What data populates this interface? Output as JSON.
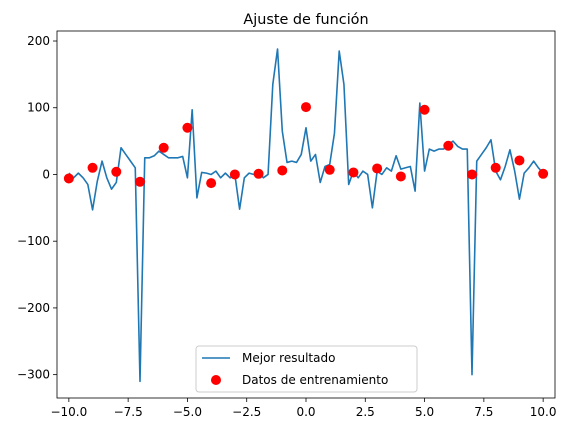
{
  "chart_data": {
    "type": "line+scatter",
    "title": "Ajuste de función",
    "xlabel": "",
    "ylabel": "",
    "xlim": [
      -10.5,
      10.5
    ],
    "ylim": [
      -335,
      215
    ],
    "xticks": [
      -10.0,
      -7.5,
      -5.0,
      -2.5,
      0.0,
      2.5,
      5.0,
      7.5,
      10.0
    ],
    "xtick_labels": [
      "−10.0",
      "−7.5",
      "−5.0",
      "−2.5",
      "0.0",
      "2.5",
      "5.0",
      "7.5",
      "10.0"
    ],
    "yticks": [
      200,
      100,
      0,
      -100,
      -200,
      -300
    ],
    "ytick_labels": [
      "200",
      "100",
      "0",
      "−100",
      "−200",
      "−300"
    ],
    "grid": false,
    "legend_position": "lower center",
    "series": [
      {
        "name": "Mejor resultado",
        "kind": "line",
        "color": "#1f77b4",
        "x": [
          -10.0,
          -9.8,
          -9.6,
          -9.4,
          -9.2,
          -9.0,
          -8.8,
          -8.6,
          -8.4,
          -8.2,
          -8.0,
          -7.8,
          -7.6,
          -7.4,
          -7.2,
          -7.0,
          -6.8,
          -6.6,
          -6.4,
          -6.2,
          -6.0,
          -5.8,
          -5.6,
          -5.4,
          -5.2,
          -5.0,
          -4.8,
          -4.6,
          -4.4,
          -4.2,
          -4.0,
          -3.8,
          -3.6,
          -3.4,
          -3.2,
          -3.0,
          -2.8,
          -2.6,
          -2.4,
          -2.2,
          -2.0,
          -1.8,
          -1.6,
          -1.4,
          -1.2,
          -1.0,
          -0.8,
          -0.6,
          -0.4,
          -0.2,
          0.0,
          0.2,
          0.4,
          0.6,
          0.8,
          1.0,
          1.2,
          1.4,
          1.6,
          1.8,
          2.0,
          2.2,
          2.4,
          2.6,
          2.8,
          3.0,
          3.2,
          3.4,
          3.6,
          3.8,
          4.0,
          4.2,
          4.4,
          4.6,
          4.8,
          5.0,
          5.2,
          5.4,
          5.6,
          5.8,
          6.0,
          6.2,
          6.4,
          6.6,
          6.8,
          7.0,
          7.2,
          7.4,
          7.6,
          7.8,
          8.0,
          8.2,
          8.4,
          8.6,
          8.8,
          9.0,
          9.2,
          9.4,
          9.6,
          9.8,
          10.0
        ],
        "y": [
          2,
          -5,
          2,
          -5,
          -15,
          -53,
          -10,
          20,
          -5,
          -22,
          -12,
          40,
          30,
          20,
          10,
          -310,
          25,
          25,
          28,
          35,
          30,
          25,
          25,
          25,
          27,
          -5,
          97,
          -35,
          3,
          2,
          0,
          5,
          -5,
          2,
          -5,
          0,
          -52,
          -5,
          2,
          0,
          5,
          -5,
          0,
          135,
          188,
          65,
          18,
          20,
          18,
          30,
          70,
          20,
          30,
          -12,
          12,
          15,
          62,
          185,
          135,
          -15,
          5,
          -5,
          5,
          0,
          -50,
          5,
          0,
          10,
          5,
          28,
          8,
          10,
          12,
          -25,
          107,
          5,
          38,
          35,
          38,
          38,
          45,
          50,
          42,
          38,
          38,
          -300,
          20,
          30,
          40,
          52,
          5,
          -8,
          12,
          37,
          5,
          -37,
          2,
          10,
          20,
          10,
          2
        ]
      },
      {
        "name": "Datos de entrenamiento",
        "kind": "scatter",
        "color": "#ff0000",
        "x": [
          -10,
          -9,
          -8,
          -7,
          -6,
          -5,
          -4,
          -3,
          -2,
          -1,
          0,
          1,
          2,
          3,
          4,
          5,
          6,
          7,
          8,
          9,
          10
        ],
        "y": [
          -6,
          10,
          4,
          -11,
          40,
          70,
          -13,
          0,
          1,
          6,
          101,
          7,
          3,
          9,
          -3,
          97,
          43,
          0,
          10,
          21,
          1
        ]
      }
    ]
  }
}
